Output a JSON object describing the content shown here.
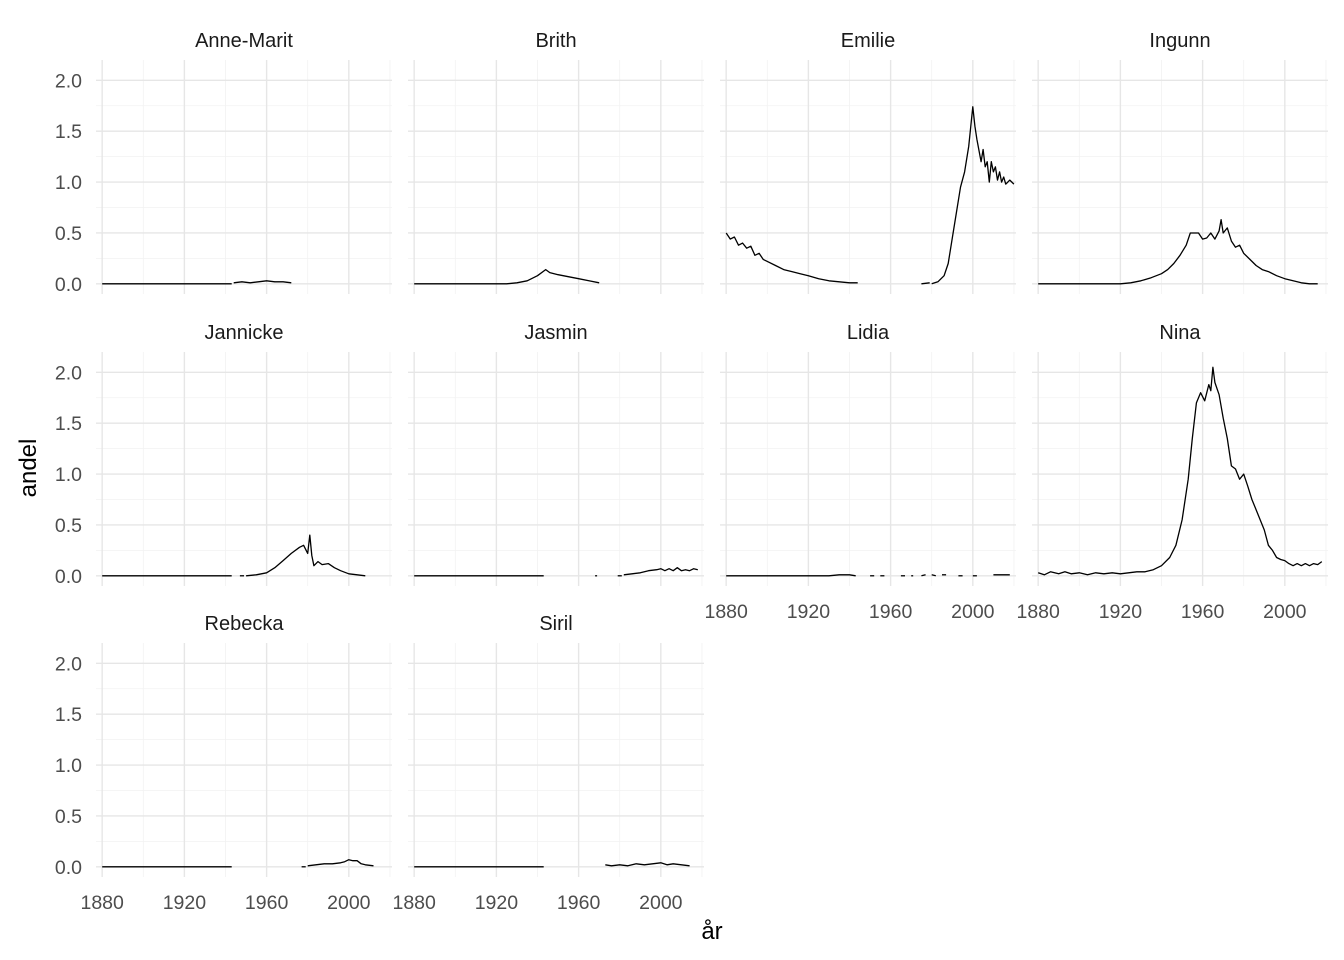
{
  "chart_data": {
    "type": "line",
    "facet_layout": "4 columns, 3 rows, shared axes",
    "xlabel": "år",
    "ylabel": "andel",
    "xlim": [
      1877,
      2021
    ],
    "ylim": [
      -0.1,
      2.2
    ],
    "x_ticks": [
      1880,
      1920,
      1960,
      2000
    ],
    "y_ticks": [
      0.0,
      0.5,
      1.0,
      1.5,
      2.0
    ],
    "x_tick_labels": [
      "1880",
      "1920",
      "1960",
      "2000"
    ],
    "y_tick_labels": [
      "0.0",
      "0.5",
      "1.0",
      "1.5",
      "2.0"
    ],
    "grid": true,
    "line_color": "#000000",
    "panels": [
      {
        "name": "Anne-Marit",
        "segments": [
          [
            [
              1880,
              0
            ],
            [
              1943,
              0
            ]
          ],
          [
            [
              1944,
              0.01
            ],
            [
              1948,
              0.02
            ],
            [
              1952,
              0.01
            ],
            [
              1956,
              0.02
            ],
            [
              1960,
              0.03
            ],
            [
              1964,
              0.02
            ],
            [
              1968,
              0.02
            ],
            [
              1972,
              0.01
            ]
          ]
        ]
      },
      {
        "name": "Brith",
        "segments": [
          [
            [
              1880,
              0
            ],
            [
              1925,
              0
            ],
            [
              1930,
              0.01
            ],
            [
              1935,
              0.03
            ],
            [
              1940,
              0.08
            ],
            [
              1944,
              0.14
            ],
            [
              1946,
              0.11
            ],
            [
              1950,
              0.09
            ],
            [
              1955,
              0.07
            ],
            [
              1960,
              0.05
            ],
            [
              1965,
              0.03
            ],
            [
              1970,
              0.01
            ]
          ]
        ]
      },
      {
        "name": "Emilie",
        "segments": [
          [
            [
              1880,
              0.5
            ],
            [
              1882,
              0.44
            ],
            [
              1884,
              0.46
            ],
            [
              1886,
              0.38
            ],
            [
              1888,
              0.4
            ],
            [
              1890,
              0.35
            ],
            [
              1892,
              0.37
            ],
            [
              1894,
              0.28
            ],
            [
              1896,
              0.3
            ],
            [
              1898,
              0.24
            ],
            [
              1900,
              0.22
            ],
            [
              1904,
              0.18
            ],
            [
              1908,
              0.14
            ],
            [
              1912,
              0.12
            ],
            [
              1916,
              0.1
            ],
            [
              1920,
              0.08
            ],
            [
              1925,
              0.05
            ],
            [
              1930,
              0.03
            ],
            [
              1935,
              0.02
            ],
            [
              1940,
              0.01
            ],
            [
              1944,
              0.01
            ]
          ],
          [
            [
              1975,
              0
            ],
            [
              1979,
              0.01
            ]
          ],
          [
            [
              1980,
              0
            ],
            [
              1983,
              0.02
            ],
            [
              1986,
              0.08
            ],
            [
              1988,
              0.2
            ],
            [
              1990,
              0.45
            ],
            [
              1992,
              0.7
            ],
            [
              1994,
              0.95
            ],
            [
              1996,
              1.1
            ],
            [
              1998,
              1.35
            ],
            [
              2000,
              1.74
            ],
            [
              2001,
              1.55
            ],
            [
              2002,
              1.42
            ],
            [
              2004,
              1.2
            ],
            [
              2005,
              1.32
            ],
            [
              2006,
              1.15
            ],
            [
              2007,
              1.2
            ],
            [
              2008,
              1.0
            ],
            [
              2009,
              1.2
            ],
            [
              2010,
              1.1
            ],
            [
              2011,
              1.15
            ],
            [
              2012,
              1.02
            ],
            [
              2013,
              1.1
            ],
            [
              2014,
              1.0
            ],
            [
              2015,
              1.05
            ],
            [
              2016,
              0.98
            ],
            [
              2017,
              1.0
            ],
            [
              2018,
              1.02
            ],
            [
              2020,
              0.98
            ]
          ]
        ]
      },
      {
        "name": "Ingunn",
        "segments": [
          [
            [
              1880,
              0
            ],
            [
              1920,
              0
            ],
            [
              1925,
              0.01
            ],
            [
              1930,
              0.03
            ],
            [
              1935,
              0.06
            ],
            [
              1940,
              0.1
            ],
            [
              1943,
              0.14
            ],
            [
              1946,
              0.2
            ],
            [
              1949,
              0.28
            ],
            [
              1952,
              0.38
            ],
            [
              1954,
              0.5
            ],
            [
              1958,
              0.5
            ],
            [
              1960,
              0.44
            ],
            [
              1962,
              0.45
            ],
            [
              1964,
              0.5
            ],
            [
              1966,
              0.44
            ],
            [
              1968,
              0.52
            ],
            [
              1969,
              0.63
            ],
            [
              1970,
              0.5
            ],
            [
              1972,
              0.55
            ],
            [
              1974,
              0.42
            ],
            [
              1976,
              0.36
            ],
            [
              1978,
              0.38
            ],
            [
              1980,
              0.3
            ],
            [
              1983,
              0.24
            ],
            [
              1986,
              0.18
            ],
            [
              1989,
              0.14
            ],
            [
              1992,
              0.12
            ],
            [
              1996,
              0.08
            ],
            [
              2000,
              0.05
            ],
            [
              2004,
              0.03
            ],
            [
              2008,
              0.01
            ],
            [
              2012,
              0.0
            ],
            [
              2016,
              0.0
            ]
          ]
        ]
      },
      {
        "name": "Jannicke",
        "segments": [
          [
            [
              1880,
              0
            ],
            [
              1943,
              0
            ]
          ],
          [
            [
              1947,
              0
            ],
            [
              1949,
              0
            ]
          ],
          [
            [
              1950,
              0
            ],
            [
              1955,
              0.01
            ],
            [
              1960,
              0.03
            ],
            [
              1964,
              0.08
            ],
            [
              1968,
              0.15
            ],
            [
              1972,
              0.22
            ],
            [
              1976,
              0.28
            ],
            [
              1978,
              0.3
            ],
            [
              1980,
              0.22
            ],
            [
              1981,
              0.4
            ],
            [
              1982,
              0.2
            ],
            [
              1983,
              0.1
            ],
            [
              1985,
              0.14
            ],
            [
              1987,
              0.11
            ],
            [
              1990,
              0.12
            ],
            [
              1993,
              0.08
            ],
            [
              1996,
              0.05
            ],
            [
              2000,
              0.02
            ],
            [
              2004,
              0.01
            ],
            [
              2008,
              0.0
            ]
          ]
        ]
      },
      {
        "name": "Jasmin",
        "segments": [
          [
            [
              1880,
              0
            ],
            [
              1943,
              0
            ]
          ],
          [
            [
              1968,
              0
            ],
            [
              1969,
              0
            ]
          ],
          [
            [
              1979,
              0
            ],
            [
              1981,
              0
            ]
          ],
          [
            [
              1982,
              0.01
            ],
            [
              1986,
              0.02
            ],
            [
              1990,
              0.03
            ],
            [
              1994,
              0.05
            ],
            [
              1998,
              0.06
            ],
            [
              2000,
              0.07
            ],
            [
              2002,
              0.05
            ],
            [
              2004,
              0.07
            ],
            [
              2006,
              0.05
            ],
            [
              2008,
              0.08
            ],
            [
              2010,
              0.05
            ],
            [
              2012,
              0.06
            ],
            [
              2014,
              0.05
            ],
            [
              2016,
              0.07
            ],
            [
              2018,
              0.06
            ]
          ]
        ]
      },
      {
        "name": "Lidia",
        "segments": [
          [
            [
              1880,
              0
            ],
            [
              1930,
              0
            ],
            [
              1935,
              0.01
            ],
            [
              1940,
              0.01
            ],
            [
              1943,
              0
            ]
          ],
          [
            [
              1950,
              0
            ],
            [
              1952,
              0
            ]
          ],
          [
            [
              1955,
              0
            ],
            [
              1957,
              0
            ]
          ],
          [
            [
              1965,
              0
            ],
            [
              1967,
              0
            ]
          ],
          [
            [
              1970,
              0
            ],
            [
              1971,
              0
            ]
          ],
          [
            [
              1975,
              0
            ],
            [
              1977,
              0.01
            ]
          ],
          [
            [
              1980,
              0.01
            ],
            [
              1982,
              0
            ]
          ],
          [
            [
              1985,
              0.01
            ],
            [
              1987,
              0.01
            ]
          ],
          [
            [
              1993,
              0
            ],
            [
              1995,
              0
            ]
          ],
          [
            [
              2000,
              0
            ],
            [
              2002,
              0
            ]
          ],
          [
            [
              2010,
              0.01
            ],
            [
              2018,
              0.01
            ]
          ]
        ]
      },
      {
        "name": "Nina",
        "segments": [
          [
            [
              1880,
              0.03
            ],
            [
              1883,
              0.01
            ],
            [
              1886,
              0.04
            ],
            [
              1890,
              0.02
            ],
            [
              1893,
              0.04
            ],
            [
              1896,
              0.02
            ],
            [
              1900,
              0.03
            ],
            [
              1904,
              0.01
            ],
            [
              1908,
              0.03
            ],
            [
              1912,
              0.02
            ],
            [
              1916,
              0.03
            ],
            [
              1920,
              0.02
            ],
            [
              1924,
              0.03
            ],
            [
              1928,
              0.04
            ],
            [
              1932,
              0.04
            ],
            [
              1936,
              0.06
            ],
            [
              1940,
              0.1
            ],
            [
              1944,
              0.18
            ],
            [
              1947,
              0.3
            ],
            [
              1950,
              0.55
            ],
            [
              1953,
              0.95
            ],
            [
              1955,
              1.35
            ],
            [
              1957,
              1.7
            ],
            [
              1959,
              1.8
            ],
            [
              1961,
              1.72
            ],
            [
              1963,
              1.88
            ],
            [
              1964,
              1.82
            ],
            [
              1965,
              2.05
            ],
            [
              1966,
              1.9
            ],
            [
              1968,
              1.78
            ],
            [
              1970,
              1.55
            ],
            [
              1972,
              1.35
            ],
            [
              1974,
              1.08
            ],
            [
              1976,
              1.05
            ],
            [
              1978,
              0.95
            ],
            [
              1980,
              1.0
            ],
            [
              1982,
              0.88
            ],
            [
              1984,
              0.75
            ],
            [
              1986,
              0.65
            ],
            [
              1988,
              0.55
            ],
            [
              1990,
              0.45
            ],
            [
              1992,
              0.3
            ],
            [
              1994,
              0.25
            ],
            [
              1996,
              0.18
            ],
            [
              1998,
              0.16
            ],
            [
              2000,
              0.15
            ],
            [
              2002,
              0.12
            ],
            [
              2004,
              0.1
            ],
            [
              2006,
              0.12
            ],
            [
              2008,
              0.1
            ],
            [
              2010,
              0.12
            ],
            [
              2012,
              0.1
            ],
            [
              2014,
              0.12
            ],
            [
              2016,
              0.11
            ],
            [
              2018,
              0.14
            ]
          ]
        ]
      },
      {
        "name": "Rebecka",
        "segments": [
          [
            [
              1880,
              0
            ],
            [
              1943,
              0
            ]
          ],
          [
            [
              1977,
              0
            ],
            [
              1979,
              0
            ]
          ],
          [
            [
              1980,
              0.01
            ],
            [
              1984,
              0.02
            ],
            [
              1988,
              0.03
            ],
            [
              1992,
              0.03
            ],
            [
              1996,
              0.04
            ],
            [
              1998,
              0.05
            ],
            [
              2000,
              0.07
            ],
            [
              2002,
              0.06
            ],
            [
              2004,
              0.06
            ],
            [
              2006,
              0.03
            ],
            [
              2008,
              0.02
            ],
            [
              2012,
              0.01
            ]
          ]
        ]
      },
      {
        "name": "Siril",
        "segments": [
          [
            [
              1880,
              0
            ],
            [
              1943,
              0
            ]
          ],
          [
            [
              1973,
              0.02
            ],
            [
              1976,
              0.01
            ],
            [
              1980,
              0.02
            ],
            [
              1984,
              0.01
            ],
            [
              1988,
              0.03
            ],
            [
              1992,
              0.02
            ],
            [
              1996,
              0.03
            ],
            [
              2000,
              0.04
            ],
            [
              2003,
              0.02
            ],
            [
              2006,
              0.03
            ],
            [
              2010,
              0.02
            ],
            [
              2014,
              0.01
            ]
          ]
        ]
      }
    ]
  }
}
